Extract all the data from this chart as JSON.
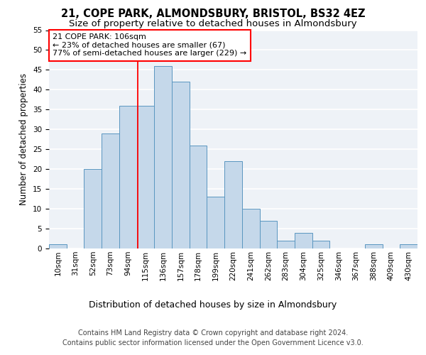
{
  "title1": "21, COPE PARK, ALMONDSBURY, BRISTOL, BS32 4EZ",
  "title2": "Size of property relative to detached houses in Almondsbury",
  "xlabel": "Distribution of detached houses by size in Almondsbury",
  "ylabel": "Number of detached properties",
  "footnote": "Contains HM Land Registry data © Crown copyright and database right 2024.\nContains public sector information licensed under the Open Government Licence v3.0.",
  "bar_labels": [
    "10sqm",
    "31sqm",
    "52sqm",
    "73sqm",
    "94sqm",
    "115sqm",
    "136sqm",
    "157sqm",
    "178sqm",
    "199sqm",
    "220sqm",
    "241sqm",
    "262sqm",
    "283sqm",
    "304sqm",
    "325sqm",
    "346sqm",
    "367sqm",
    "388sqm",
    "409sqm",
    "430sqm"
  ],
  "bar_values": [
    1,
    0,
    20,
    29,
    36,
    36,
    46,
    42,
    26,
    13,
    22,
    10,
    7,
    2,
    4,
    2,
    0,
    0,
    1,
    0,
    1
  ],
  "bar_color": "#c5d8ea",
  "bar_edge_color": "#5a96c0",
  "annotation_box_text": "21 COPE PARK: 106sqm\n← 23% of detached houses are smaller (67)\n77% of semi-detached houses are larger (229) →",
  "annotation_box_color": "white",
  "annotation_box_edge_color": "red",
  "vline_color": "red",
  "ylim": [
    0,
    55
  ],
  "yticks": [
    0,
    5,
    10,
    15,
    20,
    25,
    30,
    35,
    40,
    45,
    50,
    55
  ],
  "background_color": "#eef2f7",
  "grid_color": "white",
  "title1_fontsize": 10.5,
  "title2_fontsize": 9.5,
  "xlabel_fontsize": 9,
  "ylabel_fontsize": 8.5,
  "tick_fontsize": 7.5,
  "annotation_fontsize": 8,
  "footnote_fontsize": 7
}
